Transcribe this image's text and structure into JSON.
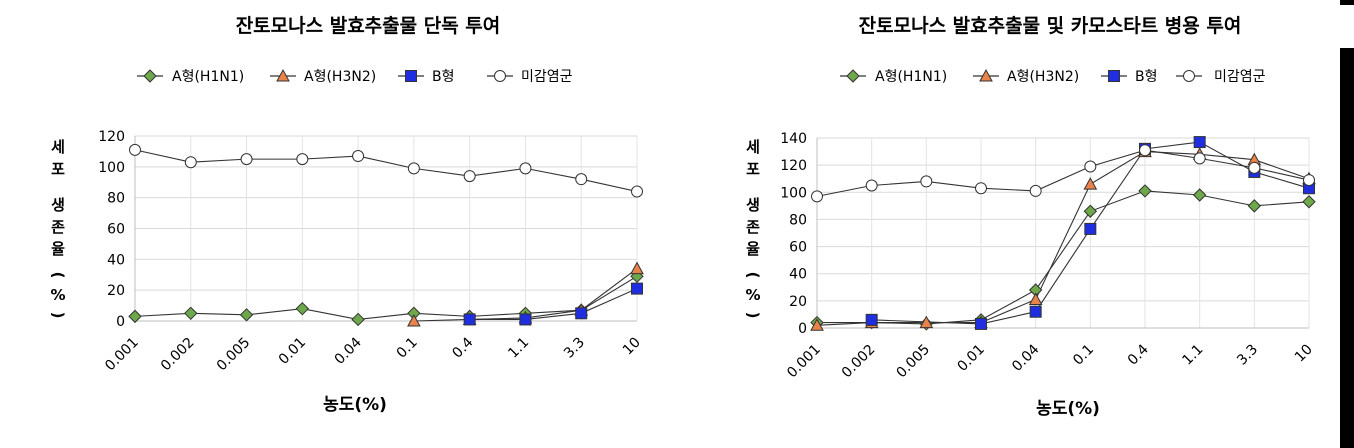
{
  "legend_labels": [
    "A형(H1N1)",
    "A형(H3N2)",
    "B형",
    "미감염군"
  ],
  "series_styles": {
    "A형(H1N1)": {
      "marker": "diamond",
      "fill": "#6fa84a"
    },
    "A형(H3N2)": {
      "marker": "triangle",
      "fill": "#e8834a"
    },
    "B형": {
      "marker": "square",
      "fill": "#1f2fe0"
    },
    "미감염군": {
      "marker": "circle",
      "fill": "#ffffff"
    }
  },
  "chart_data": [
    {
      "type": "line",
      "title": "잔토모나스 발효추출물 단독 투여",
      "xlabel": "농도(%)",
      "ylabel": "세포 생존율 (%)",
      "ylabel_glyphs": [
        "세",
        "포",
        "생",
        "존",
        "율",
        "(",
        "%",
        ")"
      ],
      "categories": [
        "0.001",
        "0.002",
        "0.005",
        "0.01",
        "0.04",
        "0.1",
        "0.4",
        "1.1",
        "3.3",
        "10"
      ],
      "ylim": [
        0,
        120
      ],
      "yticks": [
        0,
        20,
        40,
        60,
        80,
        100,
        120
      ],
      "grid": true,
      "legend_position": "top",
      "series": [
        {
          "name": "A형(H1N1)",
          "values": [
            3,
            5,
            4,
            8,
            1,
            5,
            3,
            5,
            7,
            29
          ]
        },
        {
          "name": "A형(H3N2)",
          "values": [
            null,
            null,
            null,
            null,
            null,
            0,
            1,
            2,
            7,
            34
          ]
        },
        {
          "name": "B형",
          "values": [
            null,
            null,
            null,
            null,
            null,
            null,
            1,
            1,
            5,
            21
          ]
        },
        {
          "name": "미감염군",
          "values": [
            111,
            103,
            105,
            105,
            107,
            99,
            94,
            99,
            92,
            84
          ]
        }
      ]
    },
    {
      "type": "line",
      "title": "잔토모나스 발효추출물 및 카모스타트 병용 투여",
      "xlabel": "농도(%)",
      "ylabel": "세포 생존율 (%)",
      "ylabel_glyphs": [
        "세",
        "포",
        "생",
        "존",
        "율",
        "(",
        "%",
        ")"
      ],
      "categories": [
        "0.001",
        "0.002",
        "0.005",
        "0.01",
        "0.04",
        "0.1",
        "0.4",
        "1.1",
        "3.3",
        "10"
      ],
      "ylim": [
        0,
        140
      ],
      "yticks": [
        0,
        20,
        40,
        60,
        80,
        100,
        120,
        140
      ],
      "grid": true,
      "legend_position": "top",
      "series": [
        {
          "name": "A형(H1N1)",
          "values": [
            4,
            4,
            3,
            6,
            28,
            86,
            101,
            98,
            90,
            93
          ]
        },
        {
          "name": "A형(H3N2)",
          "values": [
            2,
            4,
            4,
            4,
            21,
            106,
            130,
            128,
            124,
            110
          ]
        },
        {
          "name": "B형",
          "values": [
            null,
            6,
            null,
            3,
            12,
            73,
            132,
            137,
            115,
            103
          ]
        },
        {
          "name": "미감염군",
          "values": [
            97,
            105,
            108,
            103,
            101,
            119,
            131,
            125,
            118,
            109
          ]
        }
      ]
    }
  ]
}
